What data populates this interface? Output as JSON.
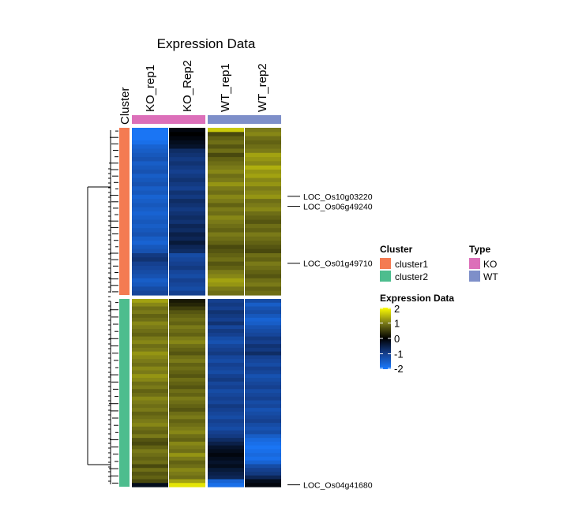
{
  "chart_data": {
    "type": "heatmap",
    "title": "Expression Data",
    "annotation_label": "Cluster",
    "columns": [
      "KO_rep1",
      "KO_Rep2",
      "WT_rep1",
      "WT_rep2"
    ],
    "column_type": [
      "KO",
      "KO",
      "WT",
      "WT"
    ],
    "row_clusters": [
      "cluster1",
      "cluster2"
    ],
    "cluster1_profile": {
      "KO_rep1": [
        -1.9,
        -1.9,
        -1.9,
        -1.8,
        -1.6,
        -1.5,
        -1.4,
        -1.3,
        -1.5,
        -1.4,
        -1.3,
        -1.5,
        -1.4,
        -1.3,
        -1.5,
        -1.4,
        -1.6,
        -1.5,
        -1.4,
        -1.5,
        -1.6,
        -1.5,
        -1.4,
        -1.5,
        -1.4,
        -1.3,
        -1.5,
        -1.6,
        -1.4,
        -1.3,
        -0.9,
        -0.8,
        -1.0,
        -1.1,
        -1.2,
        -1.3,
        -1.5,
        -1.4,
        -1.2,
        -1.1
      ],
      "KO_Rep2": [
        -0.1,
        0.0,
        -0.1,
        -0.2,
        -0.3,
        -0.7,
        -0.8,
        -0.9,
        -0.8,
        -0.9,
        -1.0,
        -0.9,
        -0.8,
        -0.9,
        -1.0,
        -0.8,
        -0.9,
        -0.7,
        -0.8,
        -0.9,
        -0.8,
        -0.7,
        -0.8,
        -0.6,
        -0.7,
        -0.5,
        -0.6,
        -0.4,
        -0.6,
        -0.7,
        -1.2,
        -1.1,
        -1.0,
        -0.9,
        -1.1,
        -1.2,
        -1.0,
        -1.1,
        -1.2,
        -1.0
      ],
      "WT_rep1": [
        1.6,
        0.6,
        0.8,
        0.9,
        0.7,
        0.9,
        0.6,
        0.8,
        0.9,
        1.0,
        1.1,
        0.9,
        1.0,
        1.2,
        1.0,
        0.9,
        1.1,
        1.0,
        0.8,
        1.0,
        0.9,
        1.1,
        1.0,
        0.9,
        0.8,
        1.0,
        0.9,
        0.8,
        0.6,
        0.7,
        0.8,
        0.9,
        0.7,
        0.8,
        1.0,
        1.1,
        1.3,
        1.2,
        1.0,
        0.9
      ],
      "WT_rep2": [
        1.0,
        1.1,
        0.9,
        0.8,
        0.9,
        1.0,
        1.3,
        1.2,
        1.1,
        1.4,
        1.2,
        1.3,
        1.1,
        1.2,
        1.0,
        1.1,
        1.2,
        0.9,
        1.0,
        1.1,
        0.9,
        0.8,
        0.7,
        0.9,
        0.8,
        1.0,
        0.9,
        0.8,
        0.7,
        0.6,
        0.9,
        0.8,
        1.0,
        0.9,
        0.8,
        0.7,
        0.9,
        1.0,
        0.8,
        0.9
      ]
    },
    "cluster2_profile": {
      "KO_rep1": [
        1.3,
        1.1,
        0.9,
        1.0,
        0.8,
        0.9,
        1.1,
        1.0,
        0.9,
        0.8,
        1.0,
        1.1,
        0.9,
        1.0,
        1.2,
        1.1,
        1.0,
        0.9,
        1.1,
        1.0,
        1.2,
        1.1,
        0.9,
        1.0,
        0.8,
        0.9,
        1.1,
        1.0,
        0.9,
        1.0,
        0.8,
        0.9,
        1.0,
        1.1,
        0.9,
        0.8,
        1.0,
        0.7,
        0.6,
        0.8,
        1.0,
        0.9,
        0.8,
        0.9,
        0.6,
        0.9,
        0.7,
        0.8,
        0.6,
        -0.2
      ],
      "KO_Rep2": [
        0.2,
        0.3,
        0.5,
        0.7,
        0.8,
        0.9,
        0.8,
        1.0,
        0.9,
        0.8,
        1.0,
        1.1,
        0.9,
        0.8,
        0.7,
        0.9,
        1.0,
        0.8,
        0.9,
        0.8,
        0.7,
        0.9,
        0.8,
        0.7,
        0.9,
        0.8,
        1.0,
        0.9,
        0.8,
        0.7,
        0.9,
        1.0,
        0.8,
        0.9,
        1.0,
        1.1,
        0.9,
        0.8,
        1.1,
        1.0,
        0.9,
        1.2,
        1.0,
        0.8,
        0.9,
        1.1,
        1.0,
        0.9,
        1.3,
        1.8
      ],
      "WT_rep1": [
        -1.0,
        -0.9,
        -1.0,
        -0.8,
        -0.9,
        -1.0,
        -0.8,
        -1.1,
        -0.9,
        -1.0,
        -1.2,
        -1.3,
        -1.1,
        -1.0,
        -0.9,
        -1.1,
        -1.2,
        -1.0,
        -1.1,
        -1.2,
        -1.0,
        -0.9,
        -1.1,
        -1.0,
        -1.2,
        -1.1,
        -1.0,
        -1.1,
        -0.9,
        -1.0,
        -1.1,
        -1.2,
        -1.0,
        -1.1,
        -1.2,
        -1.0,
        -0.9,
        -0.7,
        -0.5,
        -0.3,
        -0.2,
        -0.1,
        -0.2,
        -0.3,
        -0.2,
        -0.4,
        -0.5,
        -0.6,
        -1.6,
        -1.8
      ],
      "WT_rep2": [
        -1.2,
        -1.5,
        -1.3,
        -1.2,
        -1.4,
        -1.6,
        -1.5,
        -1.3,
        -1.2,
        -1.1,
        -0.9,
        -1.0,
        -0.8,
        -0.9,
        -0.7,
        -1.0,
        -1.1,
        -1.2,
        -1.0,
        -1.1,
        -1.3,
        -1.2,
        -1.1,
        -1.0,
        -1.2,
        -1.1,
        -1.0,
        -1.2,
        -1.1,
        -1.3,
        -1.2,
        -1.1,
        -1.0,
        -1.2,
        -1.3,
        -1.2,
        -1.5,
        -1.7,
        -1.8,
        -1.9,
        -1.8,
        -1.7,
        -1.8,
        -1.6,
        -1.2,
        -1.0,
        -0.9,
        -0.6,
        -0.2,
        -0.1
      ]
    },
    "row_labels": [
      {
        "label": "LOC_Os10g03220",
        "cluster": "cluster1",
        "row_fraction": 0.41
      },
      {
        "label": "LOC_Os06g49240",
        "cluster": "cluster1",
        "row_fraction": 0.47
      },
      {
        "label": "LOC_Os01g49710",
        "cluster": "cluster1",
        "row_fraction": 0.81
      },
      {
        "label": "LOC_Os04g41680",
        "cluster": "cluster2",
        "row_fraction": 0.99
      }
    ],
    "legend": {
      "cluster_title": "Cluster",
      "cluster_entries": [
        {
          "label": "cluster1",
          "color": "#F47B52"
        },
        {
          "label": "cluster2",
          "color": "#4DBD8E"
        }
      ],
      "type_title": "Type",
      "type_entries": [
        {
          "label": "KO",
          "color": "#DC6FB9"
        },
        {
          "label": "WT",
          "color": "#7E8FC9"
        }
      ],
      "scale_title": "Expression Data",
      "scale_ticks": [
        "2",
        "1",
        "0",
        "-1",
        "-2"
      ],
      "scale_range": [
        -2,
        2
      ]
    },
    "colors": {
      "low": "#1A7BFF",
      "mid": "#000000",
      "high": "#FFFF00"
    }
  }
}
